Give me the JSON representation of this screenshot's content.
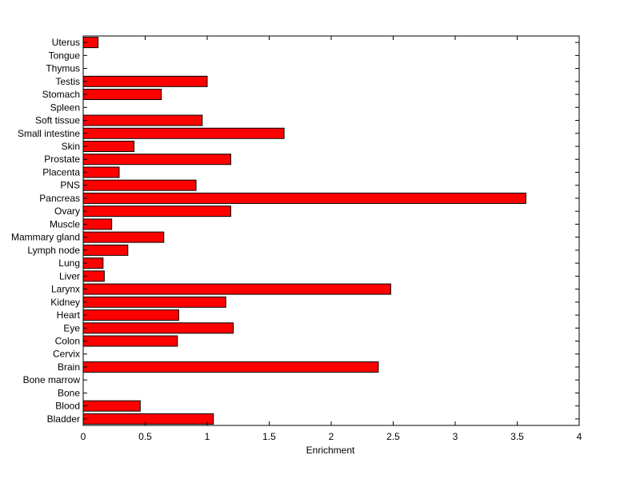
{
  "chart_data": {
    "type": "bar",
    "orientation": "horizontal",
    "categories": [
      "Bladder",
      "Blood",
      "Bone",
      "Bone marrow",
      "Brain",
      "Cervix",
      "Colon",
      "Eye",
      "Heart",
      "Kidney",
      "Larynx",
      "Liver",
      "Lung",
      "Lymph node",
      "Mammary gland",
      "Muscle",
      "Ovary",
      "Pancreas",
      "PNS",
      "Placenta",
      "Prostate",
      "Skin",
      "Small intestine",
      "Soft tissue",
      "Spleen",
      "Stomach",
      "Testis",
      "Thymus",
      "Tongue",
      "Uterus"
    ],
    "values": [
      1.05,
      0.46,
      0,
      0,
      2.38,
      0,
      0.76,
      1.21,
      0.77,
      1.15,
      2.48,
      0.17,
      0.16,
      0.36,
      0.65,
      0.23,
      1.19,
      3.57,
      0.91,
      0.29,
      1.19,
      0.41,
      1.62,
      0.96,
      0,
      0.63,
      1.0,
      0,
      0,
      0.12
    ],
    "xlabel": "Enrichment",
    "ylabel": "",
    "title": "",
    "xlim": [
      0,
      4
    ],
    "xticks": [
      0,
      0.5,
      1,
      1.5,
      2,
      2.5,
      3,
      3.5,
      4
    ],
    "xtick_labels": [
      "0",
      "0.5",
      "1",
      "1.5",
      "2",
      "2.5",
      "3",
      "3.5",
      "4"
    ],
    "bar_color": "#ff0000",
    "edge_color": "#000000",
    "grid": false,
    "legend": "none"
  }
}
